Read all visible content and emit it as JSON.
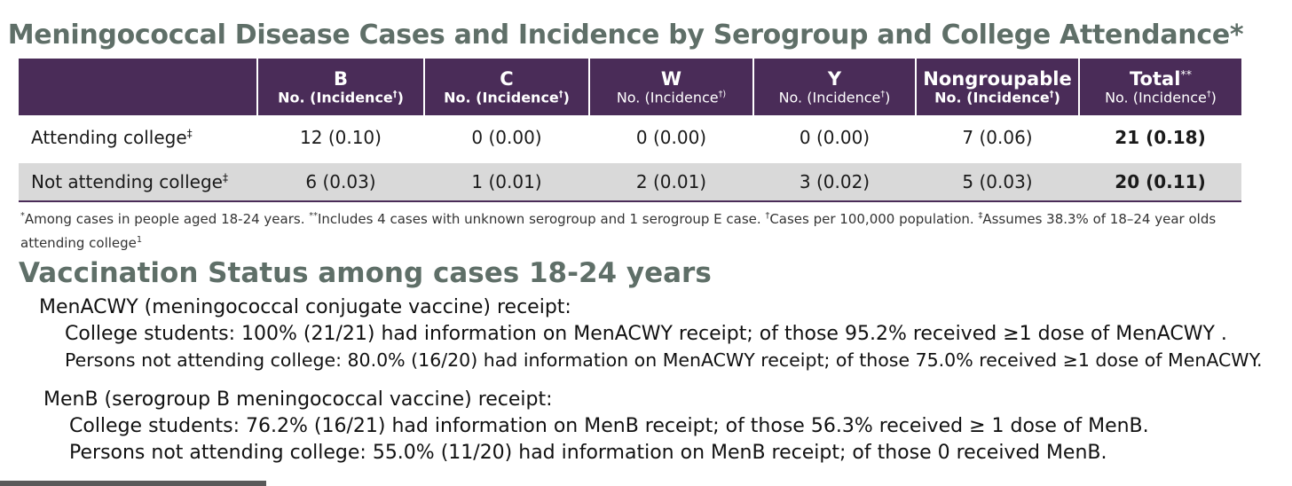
{
  "title": "Meningococcal Disease Cases and Incidence by Serogroup and College Attendance*",
  "table": {
    "columns": [
      {
        "name": "B",
        "sub": "No. (Incidence",
        "mark": "†",
        "close": ")"
      },
      {
        "name": "C",
        "sub": "No. (Incidence",
        "mark": "†",
        "close": ")"
      },
      {
        "name": "W",
        "sub": "No. (Incidence",
        "mark": "†)",
        "close": ""
      },
      {
        "name": "Y",
        "sub": "No. (Incidence",
        "mark": "†",
        "close": ")"
      },
      {
        "name": "Nongroupable",
        "sub": "No. (Incidence",
        "mark": "†",
        "close": ")"
      },
      {
        "name": "Total",
        "name_mark": "**",
        "sub": "No. (Incidence",
        "mark": "†",
        "close": ")"
      }
    ],
    "rows": [
      {
        "label": "Attending college",
        "mark": "‡",
        "cells": [
          "12 (0.10)",
          "0 (0.00)",
          "0 (0.00)",
          "0 (0.00)",
          "7 (0.06)",
          "21 (0.18)"
        ]
      },
      {
        "label": "Not attending college",
        "mark": "‡",
        "cells": [
          "6 (0.03)",
          "1 (0.01)",
          "2 (0.01)",
          "3 (0.02)",
          "5 (0.03)",
          "20 (0.11)"
        ]
      }
    ]
  },
  "footnote": {
    "m1": "*",
    "t1": "Among cases  in people aged 18-24 years. ",
    "m2": "**",
    "t2": "Includes 4 cases with unknown serogroup and 1 serogroup E case.  ",
    "m3": "†",
    "t3": "Cases per 100,000 population. ",
    "m4": "‡",
    "t4": "Assumes 38.3% of 18–24 year olds attending college",
    "m5": "1"
  },
  "vaccination": {
    "heading": "Vaccination Status among cases 18-24 years",
    "menacwy_heading": "MenACWY (meningococcal conjugate vaccine) receipt:",
    "menacwy_college": "College students: 100% (21/21) had information on MenACWY receipt; of those 95.2% received ≥1 dose of MenACWY .",
    "menacwy_not": "Persons not attending college: 80.0% (16/20) had information on MenACWY receipt; of those 75.0% received ≥1 dose of MenACWY.",
    "menb_heading": "MenB (serogroup B meningococcal vaccine) receipt:",
    "menb_college": "College students: 76.2% (16/21) had information on MenB receipt; of those 56.3% received ≥ 1 dose of MenB.",
    "menb_not": "Persons not attending college: 55.0% (11/20) had information on MenB receipt; of those 0 received MenB."
  },
  "colors": {
    "header_bg": "#4a2c58",
    "title": "#5f6f68",
    "row_shade": "#d9d9d9"
  }
}
